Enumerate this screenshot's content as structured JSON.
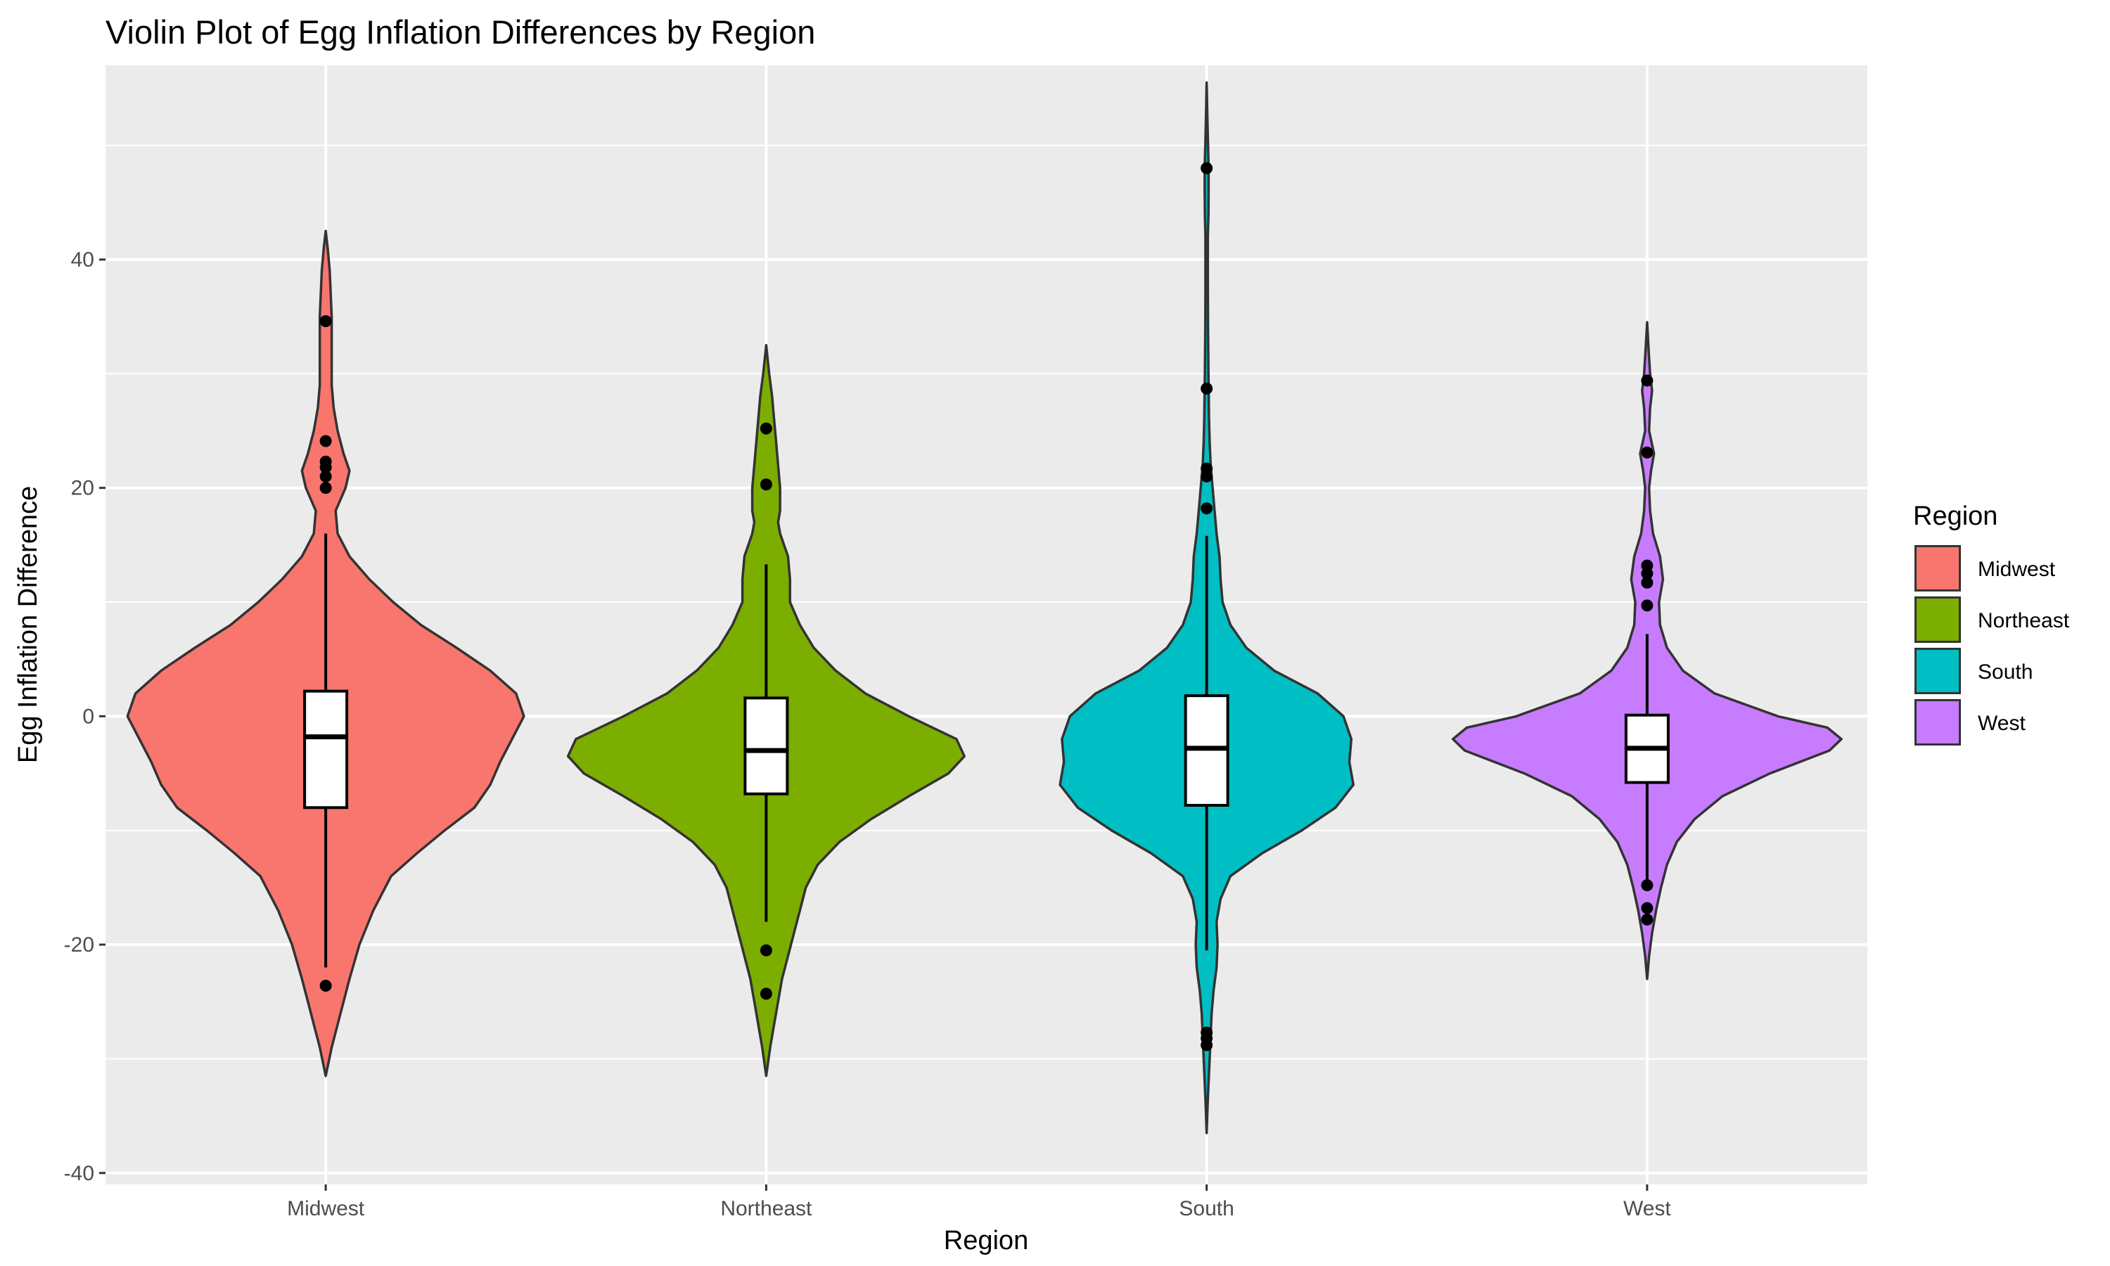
{
  "chart_data": {
    "type": "violin",
    "title": "Violin Plot of Egg Inflation Differences by Region",
    "xlabel": "Region",
    "ylabel": "Egg Inflation Difference",
    "ylim": [
      -41,
      57
    ],
    "y_ticks": [
      -40,
      -20,
      0,
      20,
      40
    ],
    "grid": true,
    "legend": {
      "title": "Region",
      "position": "right"
    },
    "categories": [
      "Midwest",
      "Northeast",
      "South",
      "West"
    ],
    "series": [
      {
        "name": "Midwest",
        "color": "#F8766D",
        "profile": [
          [
            -31.5,
            0
          ],
          [
            -29,
            0.03
          ],
          [
            -27,
            0.06
          ],
          [
            -25,
            0.09
          ],
          [
            -23,
            0.12
          ],
          [
            -20,
            0.17
          ],
          [
            -17,
            0.24
          ],
          [
            -14,
            0.33
          ],
          [
            -12,
            0.46
          ],
          [
            -10,
            0.6
          ],
          [
            -8,
            0.75
          ],
          [
            -6,
            0.83
          ],
          [
            -4,
            0.88
          ],
          [
            -2,
            0.94
          ],
          [
            0,
            1
          ],
          [
            2,
            0.96
          ],
          [
            4,
            0.83
          ],
          [
            6,
            0.66
          ],
          [
            8,
            0.48
          ],
          [
            10,
            0.34
          ],
          [
            12,
            0.22
          ],
          [
            14,
            0.12
          ],
          [
            16,
            0.06
          ],
          [
            18,
            0.05
          ],
          [
            20,
            0.1
          ],
          [
            21.5,
            0.12
          ],
          [
            23,
            0.09
          ],
          [
            25,
            0.06
          ],
          [
            27,
            0.04
          ],
          [
            29,
            0.03
          ],
          [
            31,
            0.03
          ],
          [
            33,
            0.03
          ],
          [
            35,
            0.03
          ],
          [
            37,
            0.025
          ],
          [
            39,
            0.02
          ],
          [
            41,
            0.01
          ],
          [
            42.5,
            0
          ]
        ],
        "box": {
          "q1": -8,
          "median": -1.8,
          "q3": 2.2,
          "whisker_low": -22,
          "whisker_high": 16
        },
        "points": [
          -23.6,
          20,
          21,
          21.8,
          22.3,
          24.1,
          34.6
        ]
      },
      {
        "name": "Northeast",
        "color": "#7CAE00",
        "profile": [
          [
            -31.5,
            0
          ],
          [
            -29,
            0.02
          ],
          [
            -27,
            0.04
          ],
          [
            -25,
            0.06
          ],
          [
            -23,
            0.08
          ],
          [
            -21,
            0.11
          ],
          [
            -19,
            0.14
          ],
          [
            -17,
            0.17
          ],
          [
            -15,
            0.2
          ],
          [
            -13,
            0.26
          ],
          [
            -11,
            0.37
          ],
          [
            -9,
            0.53
          ],
          [
            -7,
            0.72
          ],
          [
            -5,
            0.92
          ],
          [
            -3.5,
            1
          ],
          [
            -2,
            0.96
          ],
          [
            0,
            0.72
          ],
          [
            2,
            0.5
          ],
          [
            4,
            0.35
          ],
          [
            6,
            0.24
          ],
          [
            8,
            0.17
          ],
          [
            10,
            0.12
          ],
          [
            12,
            0.12
          ],
          [
            14,
            0.11
          ],
          [
            16,
            0.07
          ],
          [
            17,
            0.06
          ],
          [
            18,
            0.07
          ],
          [
            20,
            0.07
          ],
          [
            22,
            0.06
          ],
          [
            24,
            0.05
          ],
          [
            26,
            0.04
          ],
          [
            28,
            0.03
          ],
          [
            30,
            0.015
          ],
          [
            32.5,
            0
          ]
        ],
        "box": {
          "q1": -6.8,
          "median": -3,
          "q3": 1.6,
          "whisker_low": -18,
          "whisker_high": 13.3
        },
        "points": [
          -24.3,
          -20.5,
          20.3,
          25.2
        ]
      },
      {
        "name": "South",
        "color": "#00BFC4",
        "profile": [
          [
            -36.5,
            0
          ],
          [
            -34,
            0.005
          ],
          [
            -32,
            0.01
          ],
          [
            -30,
            0.015
          ],
          [
            -28,
            0.02
          ],
          [
            -26,
            0.025
          ],
          [
            -24,
            0.035
          ],
          [
            -22,
            0.05
          ],
          [
            -20,
            0.055
          ],
          [
            -18,
            0.05
          ],
          [
            -16,
            0.07
          ],
          [
            -14,
            0.12
          ],
          [
            -12,
            0.28
          ],
          [
            -10,
            0.48
          ],
          [
            -8,
            0.65
          ],
          [
            -6,
            0.74
          ],
          [
            -4,
            0.72
          ],
          [
            -2,
            0.73
          ],
          [
            0,
            0.69
          ],
          [
            2,
            0.56
          ],
          [
            4,
            0.34
          ],
          [
            6,
            0.2
          ],
          [
            8,
            0.12
          ],
          [
            10,
            0.08
          ],
          [
            12,
            0.07
          ],
          [
            14,
            0.065
          ],
          [
            16,
            0.05
          ],
          [
            18,
            0.04
          ],
          [
            20,
            0.03
          ],
          [
            22,
            0.02
          ],
          [
            24,
            0.015
          ],
          [
            26,
            0.012
          ],
          [
            30,
            0.009
          ],
          [
            34,
            0.007
          ],
          [
            38,
            0.006
          ],
          [
            42,
            0.006
          ],
          [
            44,
            0.009
          ],
          [
            46,
            0.01
          ],
          [
            48,
            0.01
          ],
          [
            50,
            0.007
          ],
          [
            52,
            0.004
          ],
          [
            55.5,
            0
          ]
        ],
        "box": {
          "q1": -7.8,
          "median": -2.8,
          "q3": 1.8,
          "whisker_low": -20.5,
          "whisker_high": 15.8
        },
        "points": [
          -28.8,
          -28.2,
          -27.7,
          18.2,
          21,
          21.7,
          28.7,
          48
        ]
      },
      {
        "name": "West",
        "color": "#C77CFF",
        "profile": [
          [
            -23,
            0
          ],
          [
            -21,
            0.01
          ],
          [
            -19,
            0.025
          ],
          [
            -17,
            0.045
          ],
          [
            -15,
            0.07
          ],
          [
            -13,
            0.1
          ],
          [
            -11,
            0.15
          ],
          [
            -9,
            0.24
          ],
          [
            -7,
            0.38
          ],
          [
            -5,
            0.62
          ],
          [
            -3,
            0.92
          ],
          [
            -2,
            0.98
          ],
          [
            -1,
            0.91
          ],
          [
            0,
            0.66
          ],
          [
            2,
            0.34
          ],
          [
            4,
            0.18
          ],
          [
            6,
            0.1
          ],
          [
            8,
            0.065
          ],
          [
            10,
            0.06
          ],
          [
            12,
            0.08
          ],
          [
            14,
            0.065
          ],
          [
            16,
            0.03
          ],
          [
            18,
            0.015
          ],
          [
            20,
            0.01
          ],
          [
            21.5,
            0.02
          ],
          [
            23,
            0.035
          ],
          [
            25,
            0.01
          ],
          [
            27,
            0.015
          ],
          [
            28.5,
            0.025
          ],
          [
            30,
            0.015
          ],
          [
            32,
            0.008
          ],
          [
            34.5,
            0
          ]
        ],
        "box": {
          "q1": -5.8,
          "median": -2.8,
          "q3": 0.1,
          "whisker_low": -14.8,
          "whisker_high": 7.2
        },
        "points": [
          -17.8,
          -16.8,
          -14.8,
          9.7,
          11.7,
          12.5,
          13.2,
          23.1,
          29.4
        ]
      }
    ]
  }
}
